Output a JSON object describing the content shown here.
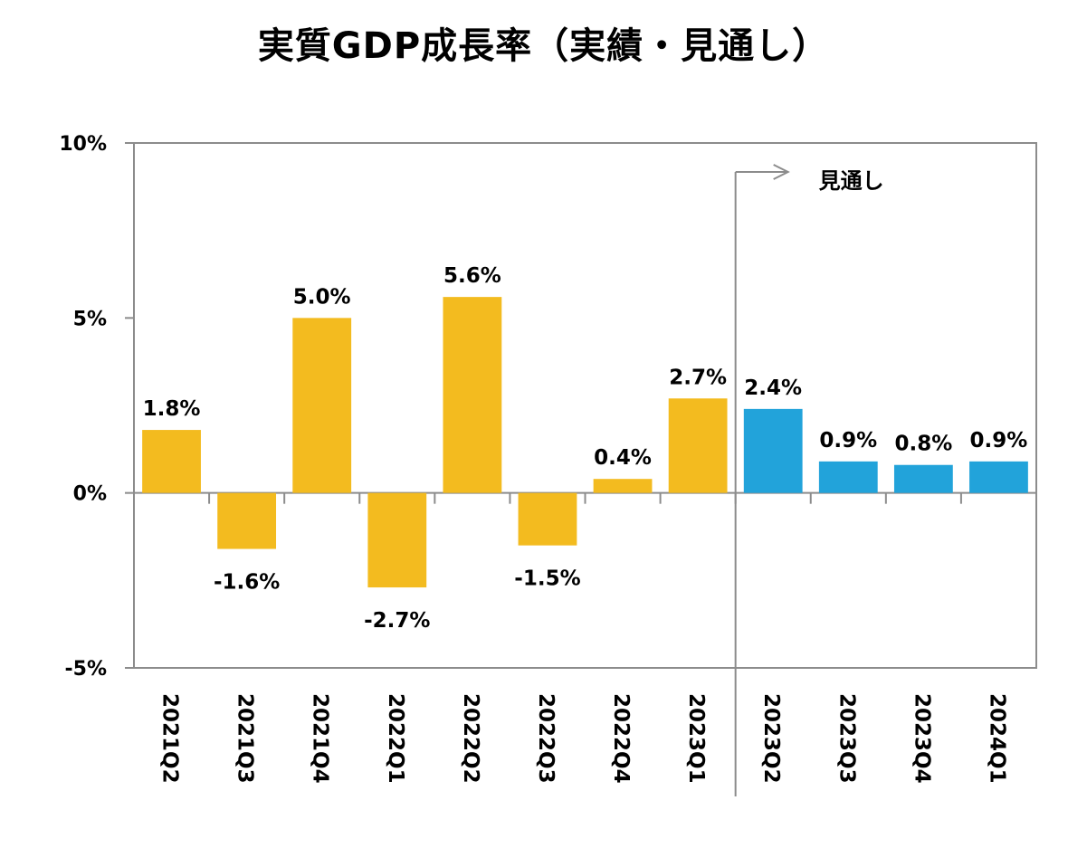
{
  "chart_data": {
    "type": "bar",
    "title": "実質GDP成長率（実績・見通し）",
    "xlabel": "",
    "ylabel": "",
    "ylim": [
      -5,
      10
    ],
    "yticks": [
      10,
      5,
      0,
      -5
    ],
    "ytick_labels": [
      "10%",
      "5%",
      "0%",
      "-5%"
    ],
    "grid": false,
    "legend": null,
    "categories": [
      "2021Q2",
      "2021Q3",
      "2021Q4",
      "2022Q1",
      "2022Q2",
      "2022Q3",
      "2022Q4",
      "2023Q1",
      "2023Q2",
      "2023Q3",
      "2023Q4",
      "2024Q1"
    ],
    "series": [
      {
        "name": "実績",
        "color": "#F3BB1F",
        "values": [
          1.8,
          -1.6,
          5.0,
          -2.7,
          5.6,
          -1.5,
          0.4,
          2.7,
          null,
          null,
          null,
          null
        ]
      },
      {
        "name": "見通し",
        "color": "#22A3DA",
        "values": [
          null,
          null,
          null,
          null,
          null,
          null,
          null,
          null,
          2.4,
          0.9,
          0.8,
          0.9
        ]
      }
    ],
    "data_labels": [
      "1.8%",
      "-1.6%",
      "5.0%",
      "-2.7%",
      "5.6%",
      "-1.5%",
      "0.4%",
      "2.7%",
      "2.4%",
      "0.9%",
      "0.8%",
      "0.9%"
    ],
    "annotations": [
      {
        "text": "見通し",
        "type": "arrow-divider",
        "after_category": "2023Q1"
      }
    ]
  },
  "colors": {
    "actual": "#F3BB1F",
    "forecast": "#22A3DA",
    "axis": "#8C8C8C"
  }
}
